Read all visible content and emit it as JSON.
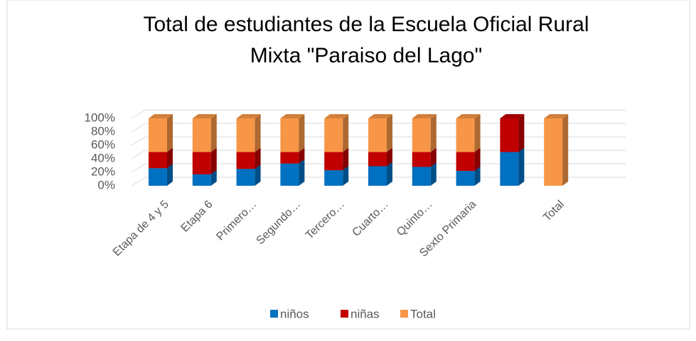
{
  "chart_data": {
    "type": "bar3d_stacked100",
    "title": "Total de estudiantes de la Escuela Oficial Rural Mixta \"Paraiso del Lago\"",
    "categories": [
      "Etapa de 4 y 5",
      "Etapa 6",
      "Primero…",
      "Segundo…",
      "Tercero…",
      "Cuarto…",
      "Quinto…",
      "Sexto Primaria",
      null,
      "Total"
    ],
    "series": [
      {
        "name": "niños",
        "color": "#0070c0",
        "values": [
          26,
          17,
          25,
          33,
          23,
          29,
          28,
          22,
          50,
          0
        ]
      },
      {
        "name": "niñas",
        "color": "#c00000",
        "values": [
          24,
          33,
          25,
          17,
          27,
          21,
          22,
          28,
          50,
          0
        ]
      },
      {
        "name": "Total",
        "color": "#f79646",
        "values": [
          50,
          50,
          50,
          50,
          50,
          50,
          50,
          50,
          0,
          100
        ]
      }
    ],
    "ylim": [
      0,
      100
    ],
    "yticks": [
      {
        "value": 0,
        "label": "0%"
      },
      {
        "value": 20,
        "label": "20%"
      },
      {
        "value": 40,
        "label": "40%"
      },
      {
        "value": 60,
        "label": "60%"
      },
      {
        "value": 80,
        "label": "80%"
      },
      {
        "value": 100,
        "label": "100%"
      }
    ],
    "grid": true,
    "legend": "bottom"
  }
}
